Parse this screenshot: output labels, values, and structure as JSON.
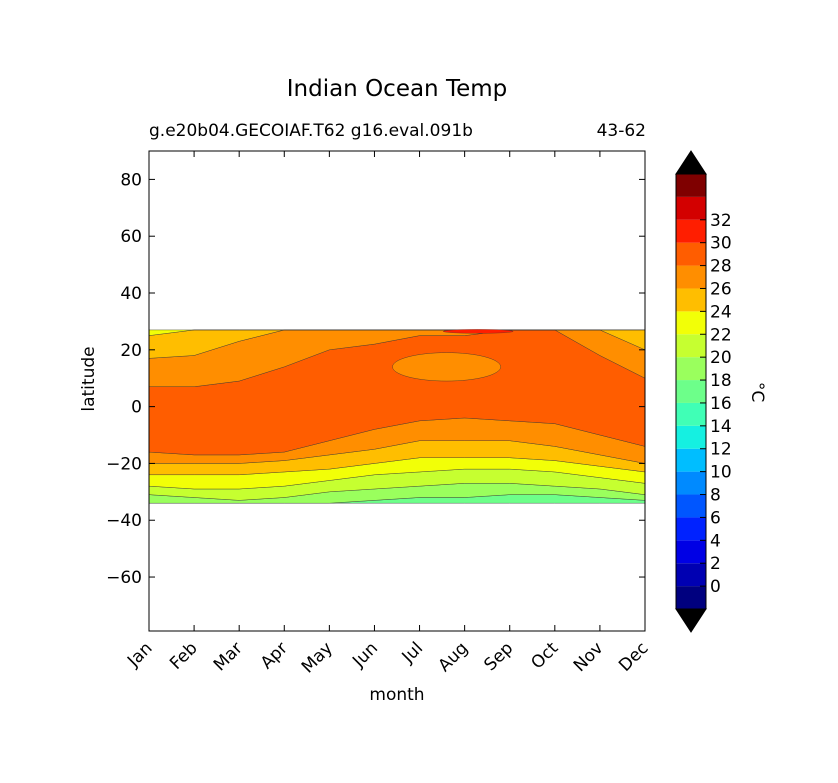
{
  "chart_data": {
    "type": "heatmap",
    "title": "Indian Ocean Temp",
    "subtitle_left": "g.e20b04.GECOIAF.T62 g16.eval.091b",
    "subtitle_right": "43-62",
    "xlabel": "month",
    "ylabel": "latitude",
    "x_ticks": [
      "Jan",
      "Feb",
      "Mar",
      "Apr",
      "May",
      "Jun",
      "Jul",
      "Aug",
      "Sep",
      "Oct",
      "Nov",
      "Dec"
    ],
    "y_ticks": [
      80,
      60,
      40,
      20,
      0,
      -20,
      -40,
      -60
    ],
    "ylim": [
      -79,
      90
    ],
    "data_lat_range": [
      -34,
      27
    ],
    "colorbar": {
      "label": "°C",
      "ticks": [
        0,
        2,
        4,
        6,
        8,
        10,
        12,
        14,
        16,
        18,
        20,
        22,
        24,
        26,
        28,
        30,
        32
      ],
      "levels": [
        -2,
        0,
        2,
        4,
        6,
        8,
        10,
        12,
        14,
        16,
        18,
        20,
        22,
        24,
        26,
        28,
        30,
        32,
        34
      ],
      "colors": [
        "#00007f",
        "#0000b2",
        "#0000e5",
        "#0022ff",
        "#0056ff",
        "#008aff",
        "#00beff",
        "#15f0e1",
        "#40ffb6",
        "#6dff8a",
        "#9aff5d",
        "#c6ff30",
        "#f2ff07",
        "#ffbe00",
        "#ff8e00",
        "#ff5d00",
        "#ff1e00",
        "#d30000",
        "#7f0000"
      ],
      "extend_colors": {
        "under": "#000000",
        "over": "#000000"
      }
    },
    "contour_boundaries": {
      "months": [
        1,
        2,
        3,
        4,
        5,
        6,
        7,
        8,
        9,
        10,
        11,
        12
      ],
      "iso_28_north": [
        7,
        7,
        9,
        14,
        20,
        22,
        25,
        25,
        27,
        27,
        18,
        10
      ],
      "iso_28_south": [
        -16,
        -17,
        -17,
        -16,
        -12,
        -8,
        -5,
        -4,
        -5,
        -6,
        -10,
        -14
      ],
      "iso_26_north": [
        17,
        18,
        23,
        27,
        27,
        27,
        27,
        27,
        27,
        27,
        27,
        20
      ],
      "iso_26_south": [
        -20,
        -20,
        -20,
        -19,
        -17,
        -15,
        -12,
        -12,
        -12,
        -14,
        -17,
        -20
      ],
      "iso_24_north": [
        25,
        27,
        27,
        27,
        27,
        27,
        27,
        27,
        27,
        27,
        27,
        27
      ],
      "iso_24_south": [
        -24,
        -24,
        -24,
        -23,
        -22,
        -20,
        -18,
        -18,
        -18,
        -19,
        -21,
        -23
      ],
      "iso_22_south": [
        -28,
        -29,
        -29,
        -28,
        -26,
        -24,
        -23,
        -22,
        -22,
        -23,
        -25,
        -27
      ],
      "iso_20_south": [
        -31,
        -32,
        -33,
        -32,
        -30,
        -29,
        -28,
        -27,
        -27,
        -28,
        -29,
        -31
      ],
      "iso_18_south": [
        -34,
        -34,
        -34,
        -34,
        -34,
        -33,
        -32,
        -32,
        -31,
        -31,
        -32,
        -33
      ],
      "aug_sep_pocket_26": {
        "lat_range": [
          9,
          19
        ],
        "month_range": [
          6.4,
          8.8
        ]
      }
    }
  }
}
